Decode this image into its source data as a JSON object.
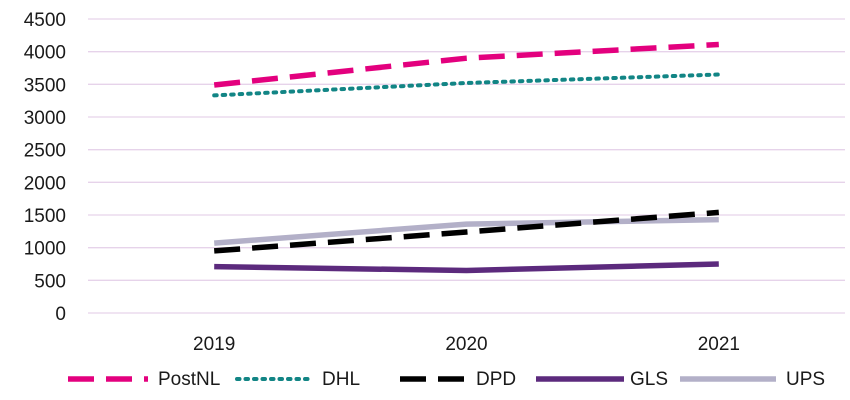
{
  "chart_data": {
    "type": "line",
    "x": [
      "2019",
      "2020",
      "2021"
    ],
    "ylim": [
      0,
      4500
    ],
    "yticks": [
      0,
      500,
      1000,
      1500,
      2000,
      2500,
      3000,
      3500,
      4000,
      4500
    ],
    "grid": true,
    "legend_position": "bottom",
    "series": [
      {
        "name": "PostNL",
        "values": [
          3490,
          3900,
          4110
        ],
        "color": "#E3007E",
        "style": "dashed"
      },
      {
        "name": "DHL",
        "values": [
          3330,
          3520,
          3650
        ],
        "color": "#128585",
        "style": "dotted"
      },
      {
        "name": "DPD",
        "values": [
          950,
          1240,
          1540
        ],
        "color": "#000000",
        "style": "dashed"
      },
      {
        "name": "GLS",
        "values": [
          710,
          650,
          750
        ],
        "color": "#5C2A7D",
        "style": "solid"
      },
      {
        "name": "UPS",
        "values": [
          1070,
          1360,
          1430
        ],
        "color": "#B3B0C8",
        "style": "solid"
      }
    ],
    "gridline_color": "#E6D3EA"
  }
}
